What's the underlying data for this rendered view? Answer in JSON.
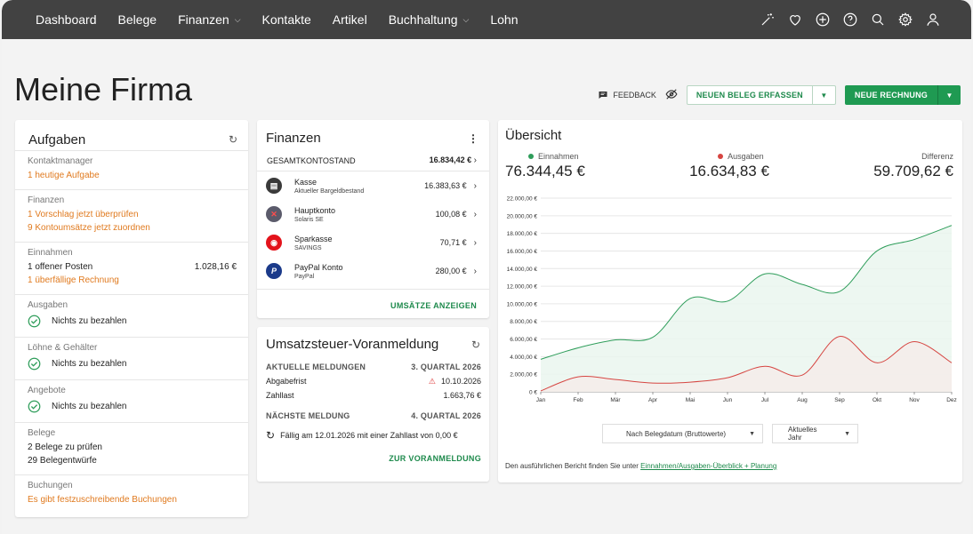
{
  "nav": {
    "items": [
      {
        "label": "Dashboard",
        "dropdown": false
      },
      {
        "label": "Belege",
        "dropdown": false
      },
      {
        "label": "Finanzen",
        "dropdown": true
      },
      {
        "label": "Kontakte",
        "dropdown": false
      },
      {
        "label": "Artikel",
        "dropdown": false
      },
      {
        "label": "Buchhaltung",
        "dropdown": true
      },
      {
        "label": "Lohn",
        "dropdown": false
      }
    ],
    "icons": [
      "magic-wand-icon",
      "heart-icon",
      "plus-circle-icon",
      "help-icon",
      "search-icon",
      "gear-icon",
      "user-icon"
    ]
  },
  "page": {
    "title": "Meine Firma",
    "feedback": "FEEDBACK",
    "new_receipt": "NEUEN BELEG ERFASSEN",
    "new_invoice": "NEUE RECHNUNG"
  },
  "tasks": {
    "title": "Aufgaben",
    "contact_label": "Kontaktmanager",
    "contact_link": "1 heutige Aufgabe",
    "finance_label": "Finanzen",
    "finance_link1": "1 Vorschlag jetzt überprüfen",
    "finance_link2": "9 Kontoumsätze jetzt zuordnen",
    "income_label": "Einnahmen",
    "income_open": "1 offener Posten",
    "income_amount": "1.028,16 €",
    "income_link": "1 überfällige Rechnung",
    "expenses_label": "Ausgaben",
    "expenses_ok": "Nichts zu bezahlen",
    "wages_label": "Löhne & Gehälter",
    "wages_ok": "Nichts zu bezahlen",
    "offers_label": "Angebote",
    "offers_ok": "Nichts zu bezahlen",
    "receipts_label": "Belege",
    "receipts_1": "2 Belege zu prüfen",
    "receipts_2": "29 Belegentwürfe",
    "bookings_label": "Buchungen",
    "bookings_link": "Es gibt festzuschreibende Buchungen"
  },
  "finance": {
    "title": "Finanzen",
    "total_label": "GESAMTKONTOSTAND",
    "total_value": "16.834,42 €",
    "accounts": [
      {
        "name": "Kasse",
        "sub": "Aktueller Bargeldbestand",
        "value": "16.383,63 €",
        "icon": "cash-register-icon",
        "color": "#3a3a3a"
      },
      {
        "name": "Hauptkonto",
        "sub": "Solaris SE",
        "value": "100,08 €",
        "icon": "solaris-icon",
        "color": "#5b5b6b"
      },
      {
        "name": "Sparkasse",
        "sub": "SAVINGS",
        "value": "70,71 €",
        "icon": "sparkasse-icon",
        "color": "#e3131b"
      },
      {
        "name": "PayPal Konto",
        "sub": "PayPal",
        "value": "280,00 €",
        "icon": "paypal-icon",
        "color": "#1b3a8a"
      }
    ],
    "show_transactions": "UMSÄTZE ANZEIGEN"
  },
  "vat": {
    "title": "Umsatzsteuer-Voranmeldung",
    "current_label": "AKTUELLE MELDUNGEN",
    "current_quarter": "3. QUARTAL 2026",
    "deadline_label": "Abgabefrist",
    "deadline_value": "10.10.2026",
    "payment_label": "Zahllast",
    "payment_value": "1.663,76 €",
    "next_label": "NÄCHSTE MELDUNG",
    "next_quarter": "4. QUARTAL 2026",
    "next_text": "Fällig am 12.01.2026 mit einer Zahllast von 0,00 €",
    "link": "ZUR VORANMELDUNG"
  },
  "overview": {
    "title": "Übersicht",
    "income_label": "Einnahmen",
    "income_value": "76.344,45 €",
    "expense_label": "Ausgaben",
    "expense_value": "16.634,83 €",
    "diff_label": "Differenz",
    "diff_value": "59.709,62 €",
    "filter1": "Nach Belegdatum (Bruttowerte)",
    "filter2": "Aktuelles Jahr",
    "note_prefix": "Den ausführlichen Bericht finden Sie unter ",
    "note_link": "Einnahmen/Ausgaben-Überblick + Planung"
  },
  "chart_data": {
    "type": "area",
    "categories": [
      "Jan",
      "Feb",
      "Mär",
      "Apr",
      "Mai",
      "Jun",
      "Jul",
      "Aug",
      "Sep",
      "Okt",
      "Nov",
      "Dez"
    ],
    "y_tick_labels": [
      "0 €",
      "2.000,00 €",
      "4.000,00 €",
      "6.000,00 €",
      "8.000,00 €",
      "10.000,00 €",
      "12.000,00 €",
      "14.000,00 €",
      "16.000,00 €",
      "18.000,00 €",
      "20.000,00 €",
      "22.000,00 €"
    ],
    "ylim": [
      0,
      22000
    ],
    "series": [
      {
        "name": "Einnahmen",
        "color": "#2e9d5a",
        "fill": "#eaf6ee",
        "values": [
          3700,
          5000,
          5900,
          6200,
          10600,
          10300,
          13400,
          12200,
          11400,
          16000,
          17300,
          18900
        ]
      },
      {
        "name": "Ausgaben",
        "color": "#d64541",
        "fill": "#f4ecea",
        "values": [
          100,
          1700,
          1400,
          1000,
          1100,
          1600,
          2900,
          1900,
          6300,
          3300,
          5700,
          3300
        ]
      }
    ]
  }
}
